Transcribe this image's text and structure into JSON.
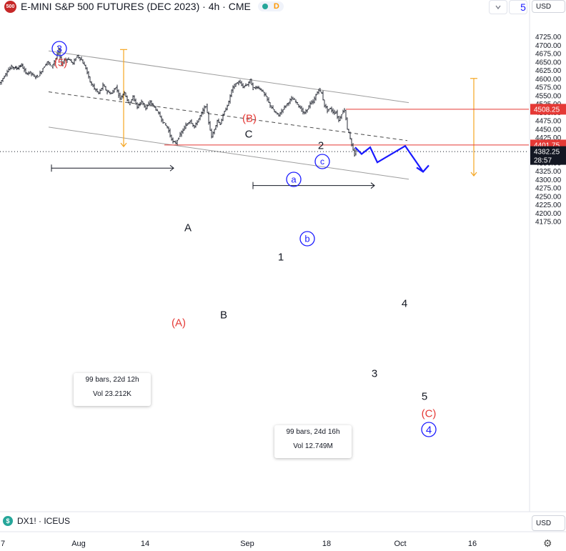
{
  "header": {
    "logo": "500",
    "title": "E-MINI S&P 500 FUTURES (DEC 2023) · 4h · CME",
    "badge": "D",
    "dropdown_icon": "chevron-down-icon",
    "currency": "USD",
    "partial_number": "5"
  },
  "footer": {
    "symbol_logo": "$",
    "symbol": "DX1! · ICEUS",
    "currency": "USD"
  },
  "chart_data": {
    "type": "candlestick",
    "title": "E-MINI S&P 500 FUTURES (DEC 2023) · 4h · CME",
    "y_axis": {
      "min": 4160,
      "max": 4745,
      "ticks": [
        "4725.00",
        "4700.00",
        "4675.00",
        "4650.00",
        "4625.00",
        "4600.00",
        "4575.00",
        "4550.00",
        "4525.00",
        "4500.00",
        "4475.00",
        "4450.00",
        "4425.00",
        "4400.00",
        "4375.00",
        "4350.00",
        "4325.00",
        "4300.00",
        "4275.00",
        "4250.00",
        "4225.00",
        "4200.00",
        "4175.00"
      ]
    },
    "x_axis": {
      "ticks": [
        "7",
        "Aug",
        "14",
        "Sep",
        "18",
        "Oct",
        "16"
      ]
    },
    "price_labels": [
      {
        "value": "4508.25",
        "color": "#e53935"
      },
      {
        "value": "4401.75",
        "color": "#e53935"
      },
      {
        "value": "4382.25",
        "countdown": "28:57",
        "color": "#131722"
      }
    ],
    "price_path": [
      [
        0,
        4582
      ],
      [
        6,
        4600
      ],
      [
        12,
        4622
      ],
      [
        18,
        4635
      ],
      [
        25,
        4630
      ],
      [
        32,
        4640
      ],
      [
        38,
        4615
      ],
      [
        44,
        4618
      ],
      [
        50,
        4605
      ],
      [
        56,
        4608
      ],
      [
        62,
        4630
      ],
      [
        68,
        4650
      ],
      [
        74,
        4635
      ],
      [
        80,
        4660
      ],
      [
        84,
        4685
      ],
      [
        88,
        4640
      ],
      [
        92,
        4655
      ],
      [
        98,
        4658
      ],
      [
        104,
        4645
      ],
      [
        110,
        4668
      ],
      [
        116,
        4655
      ],
      [
        122,
        4630
      ],
      [
        128,
        4590
      ],
      [
        134,
        4570
      ],
      [
        140,
        4555
      ],
      [
        146,
        4580
      ],
      [
        152,
        4560
      ],
      [
        158,
        4555
      ],
      [
        164,
        4575
      ],
      [
        170,
        4540
      ],
      [
        176,
        4560
      ],
      [
        182,
        4525
      ],
      [
        188,
        4545
      ],
      [
        194,
        4515
      ],
      [
        200,
        4532
      ],
      [
        206,
        4510
      ],
      [
        212,
        4530
      ],
      [
        218,
        4515
      ],
      [
        224,
        4495
      ],
      [
        230,
        4470
      ],
      [
        236,
        4455
      ],
      [
        240,
        4430
      ],
      [
        244,
        4410
      ],
      [
        248,
        4408
      ],
      [
        252,
        4425
      ],
      [
        256,
        4440
      ],
      [
        262,
        4460
      ],
      [
        268,
        4475
      ],
      [
        274,
        4455
      ],
      [
        280,
        4480
      ],
      [
        286,
        4505
      ],
      [
        290,
        4520
      ],
      [
        294,
        4470
      ],
      [
        298,
        4425
      ],
      [
        302,
        4450
      ],
      [
        306,
        4475
      ],
      [
        310,
        4465
      ],
      [
        314,
        4490
      ],
      [
        318,
        4510
      ],
      [
        322,
        4530
      ],
      [
        326,
        4565
      ],
      [
        330,
        4580
      ],
      [
        336,
        4590
      ],
      [
        342,
        4575
      ],
      [
        348,
        4582
      ],
      [
        352,
        4595
      ],
      [
        356,
        4570
      ],
      [
        362,
        4575
      ],
      [
        368,
        4565
      ],
      [
        374,
        4545
      ],
      [
        380,
        4520
      ],
      [
        386,
        4500
      ],
      [
        392,
        4490
      ],
      [
        398,
        4510
      ],
      [
        404,
        4525
      ],
      [
        410,
        4540
      ],
      [
        414,
        4535
      ],
      [
        418,
        4525
      ],
      [
        424,
        4505
      ],
      [
        428,
        4495
      ],
      [
        432,
        4510
      ],
      [
        436,
        4525
      ],
      [
        440,
        4530
      ],
      [
        444,
        4550
      ],
      [
        448,
        4568
      ],
      [
        452,
        4555
      ],
      [
        456,
        4520
      ],
      [
        460,
        4505
      ],
      [
        464,
        4510
      ],
      [
        468,
        4500
      ],
      [
        472,
        4498
      ],
      [
        476,
        4475
      ],
      [
        480,
        4495
      ],
      [
        484,
        4508
      ],
      [
        486,
        4480
      ],
      [
        488,
        4450
      ],
      [
        490,
        4440
      ],
      [
        492,
        4420
      ],
      [
        494,
        4400
      ],
      [
        496,
        4385
      ],
      [
        498,
        4372
      ],
      [
        500,
        4385
      ]
    ],
    "projection_path": [
      [
        497,
        4395
      ],
      [
        506,
        4375
      ],
      [
        518,
        4395
      ],
      [
        528,
        4350
      ],
      [
        567,
        4399
      ],
      [
        592,
        4322
      ],
      [
        600,
        4330
      ]
    ],
    "horizontal_levels": [
      {
        "name": "level-4508",
        "value": 4508.25,
        "x_start": 484
      },
      {
        "name": "level-4401",
        "value": 4401.75,
        "x_start": 230
      }
    ],
    "channel_lines": [
      {
        "name": "channel-upper",
        "style": "solid",
        "points": [
          [
            68,
            4682
          ],
          [
            572,
            4528
          ]
        ]
      },
      {
        "name": "channel-mid",
        "style": "dashed",
        "points": [
          [
            68,
            4560
          ],
          [
            570,
            4415
          ]
        ]
      },
      {
        "name": "channel-lower",
        "style": "solid",
        "points": [
          [
            68,
            4455
          ],
          [
            572,
            4300
          ]
        ]
      }
    ],
    "range_bars": [
      {
        "name": "range-left",
        "x": 173,
        "from": 4686,
        "to": 4397
      },
      {
        "name": "range-right",
        "x": 663,
        "from": 4600,
        "to": 4310
      }
    ],
    "measure_arrows": [
      {
        "name": "measure-left",
        "x1": 72,
        "x2": 243,
        "value": 4333
      },
      {
        "name": "measure-right",
        "x1": 354,
        "x2": 524,
        "value": 4281
      }
    ],
    "stat_boxes": [
      {
        "name": "stats-left",
        "line1": "99 bars, 22d 12h",
        "line2": "Vol 23.212K"
      },
      {
        "name": "stats-right",
        "line1": "99 bars, 24d 16h",
        "line2": "Vol 12.749M"
      }
    ],
    "wave_labels": [
      {
        "text": "3",
        "color": "#1a1aff",
        "circled": true
      },
      {
        "text": "(5)",
        "color": "#e53935"
      },
      {
        "text": "(B)",
        "color": "#e53935"
      },
      {
        "text": "C",
        "color": "#131722"
      },
      {
        "text": "2",
        "color": "#131722"
      },
      {
        "text": "c",
        "color": "#1a1aff",
        "circled": true
      },
      {
        "text": "a",
        "color": "#1a1aff",
        "circled": true
      },
      {
        "text": "b",
        "color": "#1a1aff",
        "circled": true
      },
      {
        "text": "A",
        "color": "#131722"
      },
      {
        "text": "1",
        "color": "#131722"
      },
      {
        "text": "B",
        "color": "#131722"
      },
      {
        "text": "(A)",
        "color": "#e53935"
      },
      {
        "text": "4",
        "color": "#131722"
      },
      {
        "text": "3",
        "color": "#131722"
      },
      {
        "text": "5",
        "color": "#131722"
      },
      {
        "text": "(C)",
        "color": "#e53935"
      },
      {
        "text": "4",
        "color": "#1a1aff",
        "circled": true
      }
    ],
    "colors": {
      "candles": "#131722",
      "channel": "#9e9e9e",
      "range": "#f5a623",
      "projection": "#1a1aff",
      "level": "#e53935"
    }
  }
}
